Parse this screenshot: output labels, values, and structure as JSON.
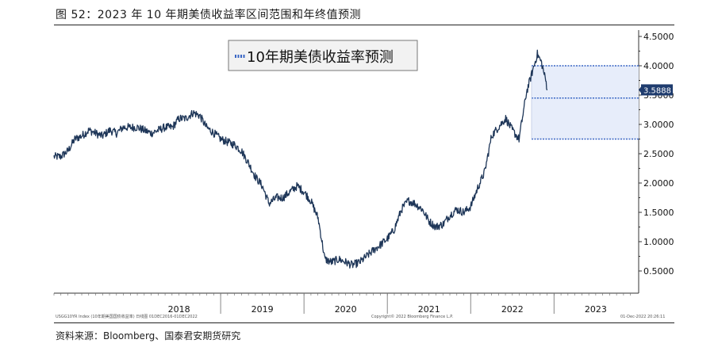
{
  "figure": {
    "title": "图 52：2023 年 10 年期美债收益率区间范围和年终值预测",
    "source": "资料来源：Bloomberg、国泰君安期货研究"
  },
  "chart_data": {
    "type": "line",
    "legend": "10年期美债收益率预测",
    "legend_position": "top-center",
    "ylim": [
      0.2,
      4.6
    ],
    "yticks": [
      "4.5000",
      "4.0000",
      "3.5000",
      "3.0000",
      "2.5000",
      "2.0000",
      "1.5000",
      "1.0000",
      "0.5000"
    ],
    "ytick_values": [
      4.5,
      4.0,
      3.5,
      3.0,
      2.5,
      2.0,
      1.5,
      1.0,
      0.5
    ],
    "x_years": [
      "2018",
      "2019",
      "2020",
      "2021",
      "2022",
      "2023"
    ],
    "last_value_label": "3.5888",
    "last_value": 3.5888,
    "forecast_2023": {
      "upper": 4.0,
      "mid": 3.45,
      "lower": 2.75
    },
    "series": [
      {
        "x": [
          2017.0,
          2017.08,
          2017.17,
          2017.25,
          2017.33,
          2017.42,
          2017.5,
          2017.58,
          2017.67,
          2017.75,
          2017.83,
          2017.92,
          2018.0,
          2018.08,
          2018.17,
          2018.25,
          2018.33,
          2018.42,
          2018.5,
          2018.58,
          2018.67,
          2018.75,
          2018.83,
          2018.92,
          2019.0,
          2019.08,
          2019.17,
          2019.25,
          2019.33,
          2019.42,
          2019.5,
          2019.58,
          2019.67,
          2019.75,
          2019.83,
          2019.92,
          2020.0,
          2020.08,
          2020.17,
          2020.25,
          2020.33,
          2020.42,
          2020.5,
          2020.58,
          2020.67,
          2020.75,
          2020.83,
          2020.92,
          2021.0,
          2021.08,
          2021.17,
          2021.25,
          2021.33,
          2021.42,
          2021.5,
          2021.58,
          2021.67,
          2021.75,
          2021.83,
          2021.92,
          2022.0,
          2022.08,
          2022.17,
          2022.25,
          2022.33,
          2022.42,
          2022.5,
          2022.58,
          2022.67,
          2022.75,
          2022.8,
          2022.85,
          2022.9,
          2022.92
        ],
        "values": [
          2.45,
          2.45,
          2.55,
          2.75,
          2.8,
          2.9,
          2.85,
          2.8,
          2.9,
          2.85,
          2.95,
          2.95,
          2.95,
          2.9,
          2.85,
          2.9,
          2.95,
          2.95,
          3.1,
          3.1,
          3.2,
          3.15,
          2.95,
          2.85,
          2.75,
          2.7,
          2.65,
          2.55,
          2.35,
          2.1,
          1.95,
          1.65,
          1.75,
          1.75,
          1.85,
          1.95,
          1.85,
          1.7,
          1.4,
          0.7,
          0.65,
          0.7,
          0.65,
          0.6,
          0.65,
          0.75,
          0.85,
          0.95,
          1.05,
          1.2,
          1.55,
          1.7,
          1.65,
          1.55,
          1.35,
          1.25,
          1.3,
          1.45,
          1.55,
          1.5,
          1.6,
          1.9,
          2.2,
          2.8,
          2.95,
          3.1,
          2.9,
          2.75,
          3.55,
          3.95,
          4.2,
          4.05,
          3.75,
          3.59
        ]
      }
    ]
  }
}
